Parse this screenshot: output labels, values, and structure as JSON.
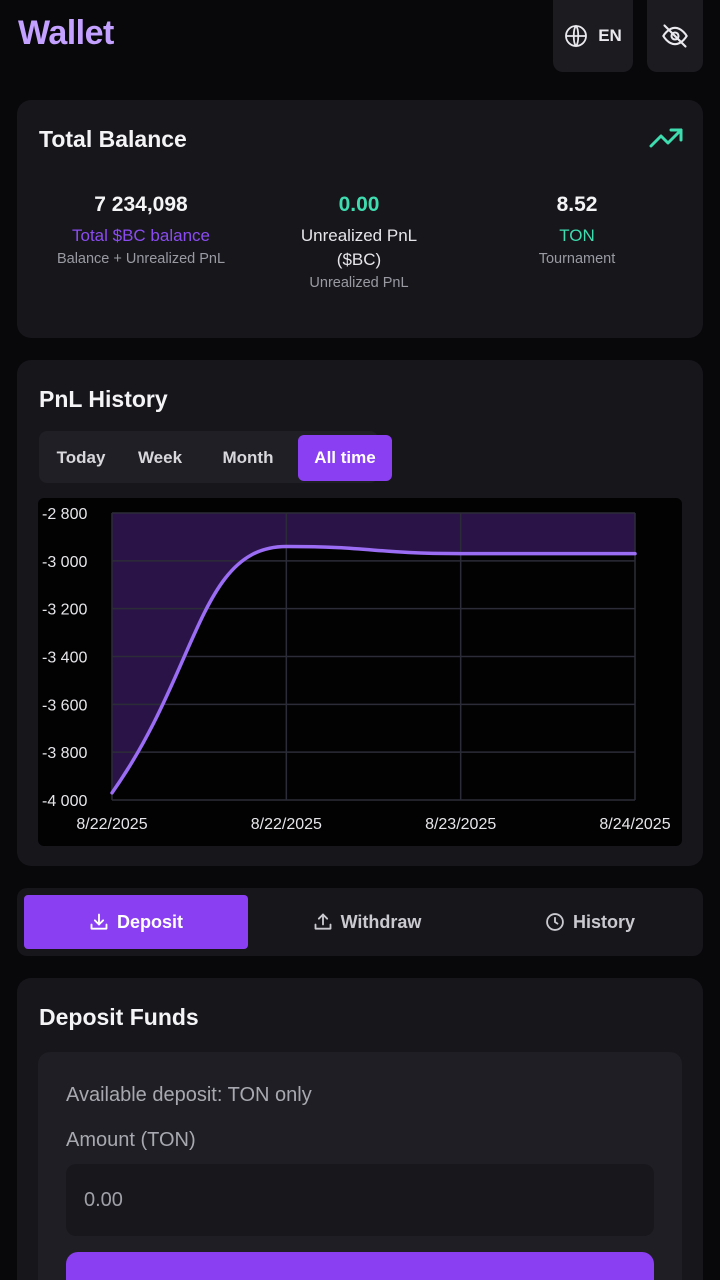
{
  "header": {
    "title": "Wallet",
    "language_label": "EN"
  },
  "balance": {
    "title": "Total Balance",
    "stats": [
      {
        "value": "7 234,098",
        "label": "Total $BC balance",
        "sub": "Balance + Unrealized PnL",
        "value_color": "#f4f4f6",
        "label_color": "#8a4cf0"
      },
      {
        "value": "0.00",
        "label": "Unrealized PnL ($BC)",
        "sub": "Unrealized PnL",
        "value_color": "#3fdcb0",
        "label_color": "#e6e6ea"
      },
      {
        "value": "8.52",
        "label": "TON",
        "sub": "Tournament",
        "value_color": "#f4f4f6",
        "label_color": "#3fdcb0"
      }
    ]
  },
  "pnl": {
    "title": "PnL History",
    "tabs": [
      "Today",
      "Week",
      "Month",
      "All time"
    ],
    "active_tab": "All time"
  },
  "chart_data": {
    "type": "line",
    "x": [
      "8/22/2025",
      "8/22/2025",
      "8/23/2025",
      "8/24/2025"
    ],
    "y": [
      -3970,
      -2940,
      -2970,
      -2970
    ],
    "y_ticks": [
      "-2 800",
      "-3 000",
      "-3 200",
      "-3 400",
      "-3 600",
      "-3 800",
      "-4 000"
    ],
    "x_ticks": [
      "8/22/2025",
      "8/22/2025",
      "8/23/2025",
      "8/24/2025"
    ],
    "ylim": [
      -4000,
      -2800
    ],
    "grid": true,
    "line_color": "#9b6cf4",
    "fill_color": "#2a1447"
  },
  "actions": {
    "items": [
      "Deposit",
      "Withdraw",
      "History"
    ],
    "active": "Deposit",
    "accent": "#8b3ff2"
  },
  "deposit": {
    "title": "Deposit Funds",
    "available_text": "Available deposit: TON only",
    "amount_label": "Amount (TON)",
    "amount_placeholder": "0.00"
  }
}
